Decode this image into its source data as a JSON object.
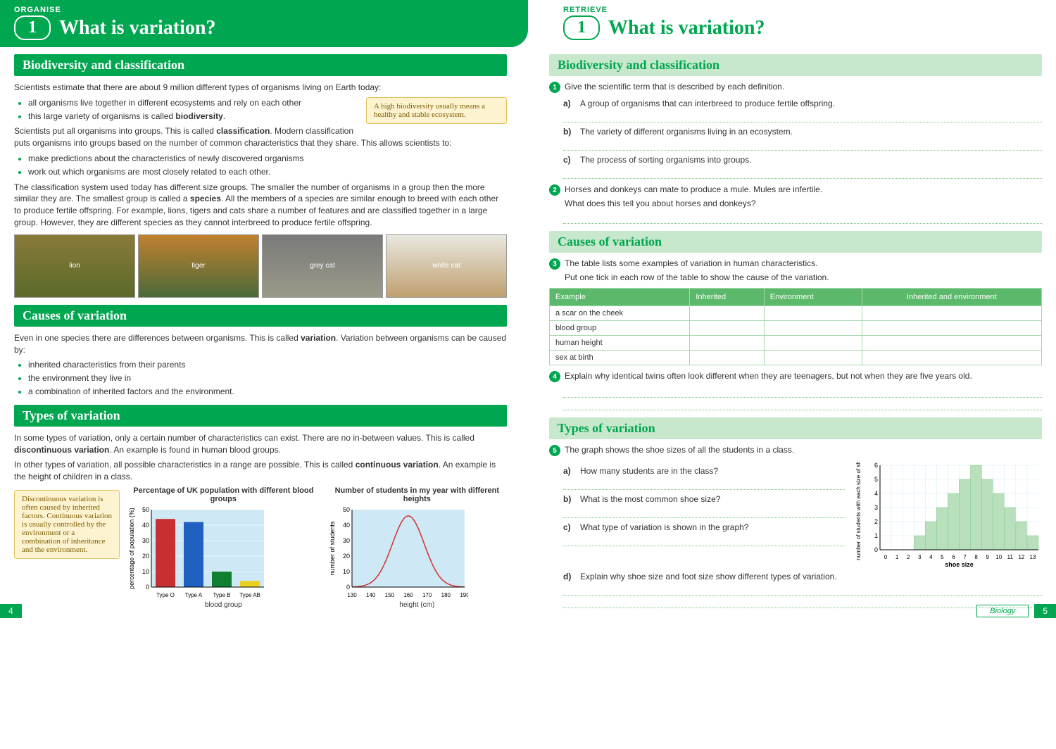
{
  "left": {
    "tag": "ORGANISE",
    "num": "1",
    "title": "What is variation?",
    "sec1": {
      "heading": "Biodiversity and classification",
      "p1": "Scientists estimate that there are about 9 million different types of organisms living on Earth today:",
      "b1": "all organisms live together in different ecosystems and rely on each other",
      "b2_a": "this large variety of organisms is called ",
      "b2_b": "biodiversity",
      "callout": "A high biodiversity usually means a healthy and stable ecosystem.",
      "p2_a": "Scientists put all organisms into groups. This is called ",
      "p2_b": "classification",
      "p2_c": ". Modern classification puts organisms into groups based on the number of common characteristics that they share. This allows scientists to:",
      "b3": "make predictions about the characteristics of newly discovered organisms",
      "b4": "work out which organisms are most closely related to each other.",
      "p3_a": "The classification system used today has different size groups. The smaller the number of organisms in a group then the more similar they are. The smallest group is called a ",
      "p3_b": "species",
      "p3_c": ". All the members of a species are similar enough to breed with each other to produce fertile offspring. For example, lions, tigers and cats share a number of features and are classified together in a large group. However, they are different species as they cannot interbreed to produce fertile offspring.",
      "photos": [
        "lion",
        "tiger",
        "grey cat",
        "white cat"
      ]
    },
    "sec2": {
      "heading": "Causes of variation",
      "p1_a": "Even in one species there are differences between organisms. This is called ",
      "p1_b": "variation",
      "p1_c": ". Variation between organisms can be caused by:",
      "b1": "inherited characteristics from their parents",
      "b2": "the environment they live in",
      "b3": "a combination of inherited factors and the environment."
    },
    "sec3": {
      "heading": "Types of variation",
      "p1_a": "In some types of variation, only a certain number of characteristics can exist. There are no in-between values. This is called ",
      "p1_b": "discontinuous variation",
      "p1_c": ". An example is found in human blood groups.",
      "p2_a": "In other types of variation, all possible characteristics in a range are possible. This is called ",
      "p2_b": "continuous variation",
      "p2_c": ". An example is the height of children in a class.",
      "callout": "Discontinuous variation is often caused by inherited factors. Continuous variation is usually controlled by the environment or a combination of inheritance and the environment.",
      "chart1": {
        "title": "Percentage of UK population with different blood groups",
        "ylabel": "percentage of population (%)",
        "xlabel": "blood group",
        "yticks": [
          0,
          10,
          20,
          30,
          40,
          50
        ],
        "categories": [
          "Type O",
          "Type A",
          "Type B",
          "Type AB"
        ],
        "values": [
          44,
          42,
          10,
          4
        ],
        "colors": [
          "#c73030",
          "#2060c0",
          "#108030",
          "#e8d020"
        ],
        "bg": "#cfe8f5"
      },
      "chart2": {
        "title": "Number of students in my year with different heights",
        "ylabel": "number of students",
        "xlabel": "height (cm)",
        "yticks": [
          0,
          10,
          20,
          30,
          40,
          50
        ],
        "xticks": [
          130,
          140,
          150,
          160,
          170,
          180,
          190
        ],
        "line_color": "#d03030",
        "bg": "#cfe8f5"
      }
    },
    "pagenum": "4"
  },
  "right": {
    "tag": "RETRIEVE",
    "num": "1",
    "title": "What is variation?",
    "sec1": {
      "heading": "Biodiversity and classification",
      "q1": "Give the scientific term that is described by each definition.",
      "q1a": "A group of organisms that can interbreed to produce fertile offspring.",
      "q1b": "The variety of different organisms living in an ecosystem.",
      "q1c": "The process of sorting organisms into groups.",
      "q2a": "Horses and donkeys can mate to produce a mule. Mules are infertile.",
      "q2b": "What does this tell you about horses and donkeys?"
    },
    "sec2": {
      "heading": "Causes of variation",
      "q3a": "The table lists some examples of variation in human characteristics.",
      "q3b": "Put one tick in each row of the table to show the cause of the variation.",
      "th1": "Example",
      "th2": "Inherited",
      "th3": "Environment",
      "th4": "Inherited and environment",
      "r1": "a scar on the cheek",
      "r2": "blood group",
      "r3": "human height",
      "r4": "sex at birth",
      "q4": "Explain why identical twins often look different when they are teenagers, but not when they are five years old."
    },
    "sec3": {
      "heading": "Types of variation",
      "q5": "The graph shows the shoe sizes of all the students in a class.",
      "q5a": "How many students are in the class?",
      "q5b": "What is the most common shoe size?",
      "q5c": "What type of variation is shown in the graph?",
      "q5d": "Explain why shoe size and foot size show different types of variation.",
      "chart": {
        "ylabel": "number of students with each size of shoe",
        "xlabel": "shoe size",
        "yticks": [
          0,
          1,
          2,
          3,
          4,
          5,
          6
        ],
        "xticks": [
          0,
          1,
          2,
          3,
          4,
          5,
          6,
          7,
          8,
          9,
          10,
          11,
          12,
          13
        ],
        "values": [
          0,
          0,
          0,
          1,
          2,
          3,
          4,
          5,
          6,
          5,
          4,
          3,
          2,
          1
        ],
        "bar_color": "#b8e0bc",
        "grid_color": "#cfe8f5"
      }
    },
    "subject": "Biology",
    "pagenum": "5"
  }
}
